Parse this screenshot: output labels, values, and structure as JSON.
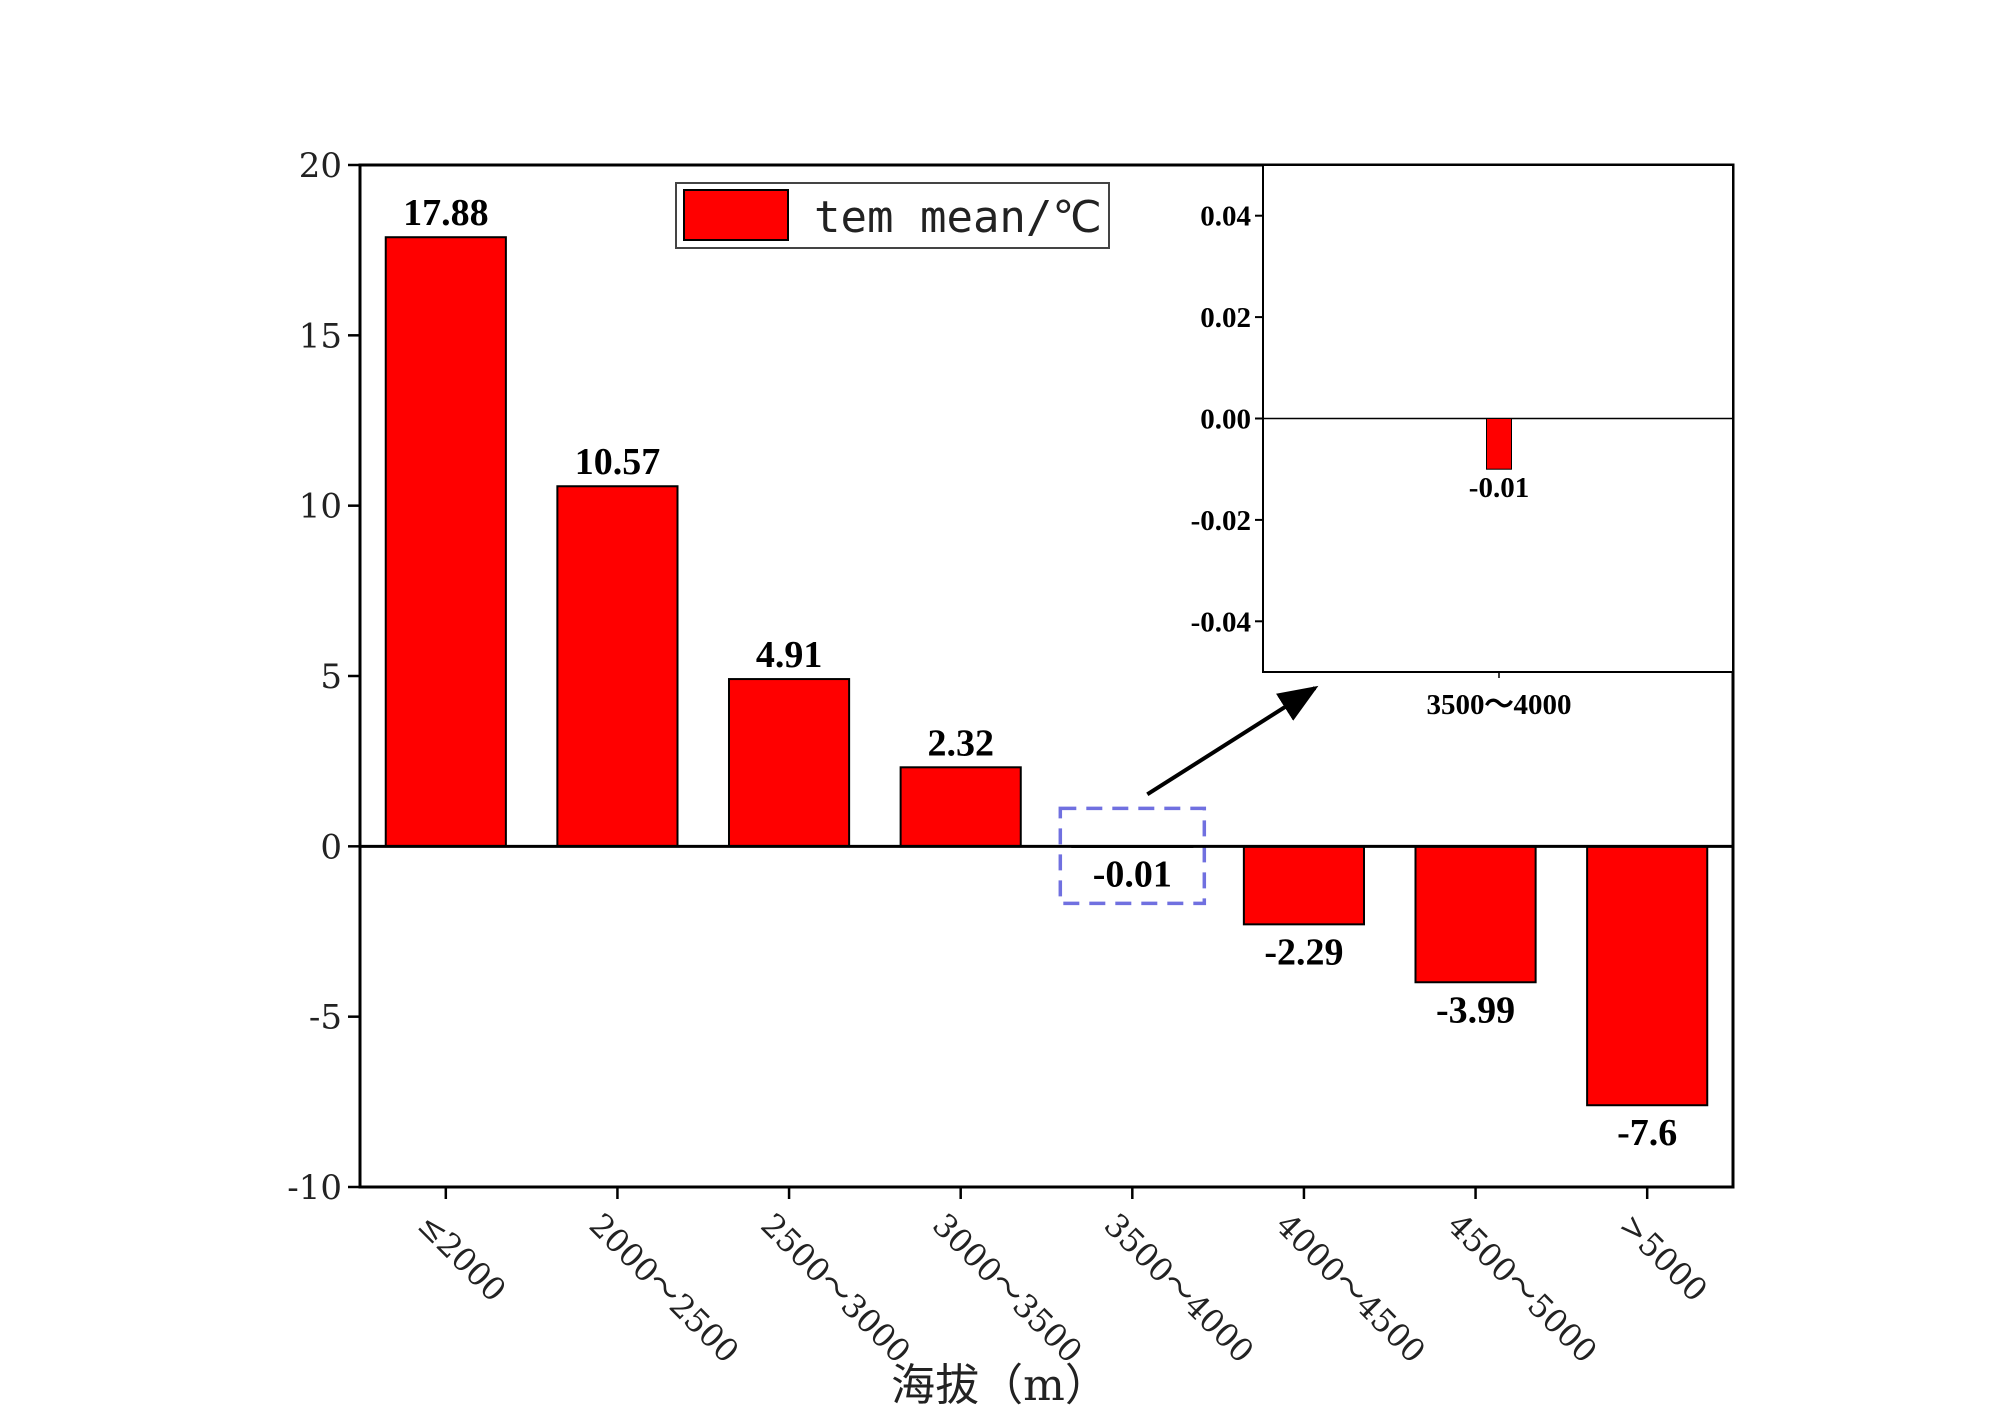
{
  "chart_data": [
    {
      "type": "bar",
      "categories": [
        "≤2000",
        "2000～2500",
        "2500～3000",
        "3000～3500",
        "3500～4000",
        "4000～4500",
        "4500～5000",
        ">5000"
      ],
      "series": [
        {
          "name": "tem mean/℃",
          "values": [
            17.88,
            10.57,
            4.91,
            2.32,
            -0.01,
            -2.29,
            -3.99,
            -7.6
          ]
        }
      ],
      "value_labels": [
        "17.88",
        "10.57",
        "4.91",
        "2.32",
        "-0.01",
        "-2.29",
        "-3.99",
        "-7.6"
      ],
      "xlabel": "海拔（m）",
      "ylabel": "",
      "ylim": [
        -10,
        20
      ],
      "yticks": [
        20,
        15,
        10,
        5,
        0,
        -5,
        -10
      ],
      "ytick_labels": [
        "20",
        "15",
        "10",
        "5",
        "0",
        "-5",
        "-10"
      ],
      "legend_position": "top-center",
      "grid": false,
      "bar_color": "#ff0000",
      "highlight_category": "3500～4000",
      "highlight_color": "#7070e0"
    },
    {
      "type": "bar",
      "role": "inset",
      "categories": [
        "3500～4000"
      ],
      "values": [
        -0.01
      ],
      "value_labels": [
        "-0.01"
      ],
      "ylim": [
        -0.05,
        0.05
      ],
      "yticks": [
        0.04,
        0.02,
        0.0,
        -0.02,
        -0.04
      ],
      "ytick_labels": [
        "0.04",
        "0.02",
        "0.00",
        "-0.02",
        "-0.04"
      ],
      "bar_color": "#ff0000"
    }
  ]
}
